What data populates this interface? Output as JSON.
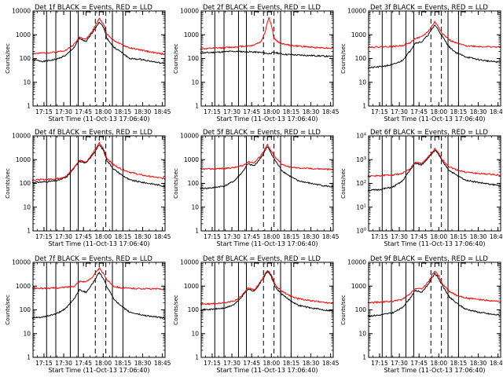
{
  "chart_data": [
    {
      "type": "line",
      "title": "Det 1f BLACK = Events, RED = LLD",
      "xlabel": "Start Time (11-Oct-13 17:06:40)",
      "ylabel": "Counts/sec",
      "yscale": "log",
      "ylim": [
        1,
        10000
      ],
      "x_ticks": [
        "17:15",
        "17:30",
        "17:45",
        "18:00",
        "18:15",
        "18:30",
        "18:45"
      ],
      "y_ticks": [
        "1",
        "10",
        "100",
        "1000",
        "10000"
      ],
      "series": [
        {
          "name": "Events",
          "color": "#000000",
          "x": [
            "17:06",
            "17:15",
            "17:25",
            "17:32",
            "17:38",
            "17:42",
            "17:47",
            "17:52",
            "17:57",
            "18:00",
            "18:03",
            "18:08",
            "18:13",
            "18:20",
            "18:30",
            "18:40",
            "18:47"
          ],
          "values": [
            90,
            75,
            95,
            140,
            300,
            700,
            500,
            1300,
            3500,
            2200,
            700,
            300,
            200,
            100,
            90,
            70,
            60
          ]
        },
        {
          "name": "LLD",
          "color": "#ff0000",
          "x": [
            "17:06",
            "17:15",
            "17:25",
            "17:32",
            "17:38",
            "17:42",
            "17:47",
            "17:52",
            "17:57",
            "18:00",
            "18:03",
            "18:08",
            "18:13",
            "18:20",
            "18:30",
            "18:40",
            "18:47"
          ],
          "values": [
            160,
            170,
            190,
            230,
            400,
            800,
            650,
            1500,
            4800,
            3000,
            1000,
            600,
            400,
            280,
            220,
            170,
            150
          ]
        }
      ]
    },
    {
      "type": "line",
      "title": "Det 2f BLACK = Events, RED = LLD",
      "xlabel": "Start Time (11-Oct-13 17:06:40)",
      "ylabel": "Counts/sec",
      "yscale": "log",
      "ylim": [
        1,
        10000
      ],
      "x_ticks": [
        "17:15",
        "17:30",
        "17:45",
        "18:00",
        "18:15",
        "18:30",
        "18:45"
      ],
      "y_ticks": [
        "1",
        "10",
        "100",
        "1000",
        "10000"
      ],
      "series": [
        {
          "name": "Events",
          "color": "#000000",
          "x": [
            "17:06",
            "17:15",
            "17:30",
            "17:45",
            "17:52",
            "17:55",
            "17:58",
            "18:02",
            "18:10",
            "18:20",
            "18:35",
            "18:47"
          ],
          "values": [
            170,
            180,
            200,
            190,
            180,
            170,
            160,
            180,
            150,
            140,
            130,
            120
          ]
        },
        {
          "name": "LLD",
          "color": "#ff0000",
          "x": [
            "17:06",
            "17:15",
            "17:30",
            "17:45",
            "17:52",
            "17:55",
            "17:58",
            "18:00",
            "18:02",
            "18:06",
            "18:15",
            "18:30",
            "18:47"
          ],
          "values": [
            250,
            270,
            300,
            350,
            500,
            1200,
            5500,
            2500,
            700,
            450,
            350,
            300,
            270
          ]
        }
      ]
    },
    {
      "type": "line",
      "title": "Det 3f BLACK = Events, RED = LLD",
      "xlabel": "Start Time (11-Oct-13 17:06:40)",
      "ylabel": "Counts/sec",
      "yscale": "log",
      "ylim": [
        1,
        10000
      ],
      "x_ticks": [
        "17:15",
        "17:30",
        "17:45",
        "18:00",
        "18:15",
        "18:30",
        "18:45"
      ],
      "y_ticks": [
        "1",
        "10",
        "100",
        "1000",
        "10000"
      ],
      "series": [
        {
          "name": "Events",
          "color": "#000000",
          "x": [
            "17:06",
            "17:15",
            "17:25",
            "17:32",
            "17:38",
            "17:42",
            "17:47",
            "17:52",
            "17:57",
            "18:00",
            "18:03",
            "18:08",
            "18:13",
            "18:20",
            "18:30",
            "18:40",
            "18:47"
          ],
          "values": [
            40,
            45,
            55,
            80,
            200,
            450,
            500,
            1000,
            2600,
            1500,
            800,
            300,
            180,
            120,
            90,
            75,
            70
          ]
        },
        {
          "name": "LLD",
          "color": "#ff0000",
          "x": [
            "17:06",
            "17:15",
            "17:25",
            "17:32",
            "17:38",
            "17:42",
            "17:47",
            "17:52",
            "17:57",
            "18:00",
            "18:03",
            "18:08",
            "18:13",
            "18:20",
            "18:30",
            "18:40",
            "18:47"
          ],
          "values": [
            300,
            310,
            320,
            350,
            450,
            700,
            800,
            1400,
            3500,
            2000,
            1100,
            600,
            450,
            350,
            320,
            310,
            300
          ]
        }
      ]
    },
    {
      "type": "line",
      "title": "Det 4f BLACK = Events, RED = LLD",
      "xlabel": "Start Time (11-Oct-13 17:06:40)",
      "ylabel": "Counts/sec",
      "yscale": "log",
      "ylim": [
        1,
        10000
      ],
      "x_ticks": [
        "17:15",
        "17:30",
        "17:45",
        "18:00",
        "18:15",
        "18:30",
        "18:45"
      ],
      "y_ticks": [
        "1",
        "10",
        "100",
        "1000",
        "10000"
      ],
      "series": [
        {
          "name": "Events",
          "color": "#000000",
          "x": [
            "17:06",
            "17:15",
            "17:25",
            "17:32",
            "17:38",
            "17:42",
            "17:47",
            "17:52",
            "17:57",
            "18:00",
            "18:03",
            "18:08",
            "18:13",
            "18:20",
            "18:30",
            "18:40",
            "18:47"
          ],
          "values": [
            110,
            115,
            130,
            180,
            450,
            900,
            700,
            1600,
            4200,
            2600,
            900,
            400,
            250,
            140,
            110,
            90,
            75
          ]
        },
        {
          "name": "LLD",
          "color": "#ff0000",
          "x": [
            "17:06",
            "17:15",
            "17:25",
            "17:32",
            "17:38",
            "17:42",
            "17:47",
            "17:52",
            "17:57",
            "18:00",
            "18:03",
            "18:08",
            "18:13",
            "18:20",
            "18:30",
            "18:40",
            "18:47"
          ],
          "values": [
            140,
            145,
            160,
            200,
            480,
            950,
            800,
            1800,
            5000,
            3000,
            1100,
            600,
            420,
            300,
            220,
            180,
            160
          ]
        }
      ]
    },
    {
      "type": "line",
      "title": "Det 5f BLACK = Events, RED = LLD",
      "xlabel": "Start Time (11-Oct-13 17:06:40)",
      "ylabel": "Counts/sec",
      "yscale": "log",
      "ylim": [
        1,
        10000
      ],
      "x_ticks": [
        "17:15",
        "17:30",
        "17:45",
        "18:00",
        "18:15",
        "18:30",
        "18:45"
      ],
      "y_ticks": [
        "1",
        "10",
        "100",
        "1000",
        "10000"
      ],
      "series": [
        {
          "name": "Events",
          "color": "#000000",
          "x": [
            "17:06",
            "17:15",
            "17:25",
            "17:32",
            "17:38",
            "17:42",
            "17:47",
            "17:52",
            "17:57",
            "18:00",
            "18:03",
            "18:08",
            "18:13",
            "18:20",
            "18:30",
            "18:40",
            "18:47"
          ],
          "values": [
            60,
            65,
            80,
            130,
            300,
            650,
            550,
            1200,
            3500,
            1800,
            900,
            350,
            220,
            130,
            100,
            80,
            70
          ]
        },
        {
          "name": "LLD",
          "color": "#ff0000",
          "x": [
            "17:06",
            "17:15",
            "17:25",
            "17:32",
            "17:38",
            "17:42",
            "17:47",
            "17:52",
            "17:57",
            "18:00",
            "18:03",
            "18:08",
            "18:13",
            "18:20",
            "18:30",
            "18:40",
            "18:47"
          ],
          "values": [
            400,
            410,
            430,
            470,
            550,
            800,
            750,
            1500,
            4200,
            2200,
            1200,
            650,
            500,
            450,
            420,
            400,
            380
          ]
        }
      ]
    },
    {
      "type": "line",
      "title": "Det 6f BLACK = Events, RED = LLD",
      "xlabel": "Start Time (11-Oct-13 17:06:40)",
      "ylabel": "Counts/sec",
      "yscale": "log",
      "ylim": [
        1,
        10000
      ],
      "x_ticks": [
        "17:15",
        "17:30",
        "17:45",
        "18:00",
        "18:15",
        "18:30",
        "18:45"
      ],
      "y_ticks": [
        "10^0",
        "10^1",
        "10^2",
        "10^3",
        "10^4"
      ],
      "series": [
        {
          "name": "Events",
          "color": "#000000",
          "x": [
            "17:06",
            "17:15",
            "17:25",
            "17:32",
            "17:38",
            "17:42",
            "17:47",
            "17:52",
            "17:57",
            "18:00",
            "18:03",
            "18:08",
            "18:13",
            "18:20",
            "18:30",
            "18:40",
            "18:47"
          ],
          "values": [
            50,
            55,
            70,
            120,
            350,
            700,
            600,
            1200,
            2500,
            1600,
            800,
            350,
            230,
            140,
            110,
            90,
            80
          ]
        },
        {
          "name": "LLD",
          "color": "#ff0000",
          "x": [
            "17:06",
            "17:15",
            "17:25",
            "17:32",
            "17:38",
            "17:42",
            "17:47",
            "17:52",
            "17:57",
            "18:00",
            "18:03",
            "18:08",
            "18:13",
            "18:20",
            "18:30",
            "18:40",
            "18:47"
          ],
          "values": [
            200,
            210,
            230,
            260,
            400,
            750,
            700,
            1300,
            2800,
            1800,
            950,
            500,
            380,
            300,
            260,
            240,
            220
          ]
        }
      ]
    },
    {
      "type": "line",
      "title": "Det 7f BLACK = Events, RED = LLD",
      "xlabel": "Start Time (11-Oct-13 17:06:40)",
      "ylabel": "Counts/sec",
      "yscale": "log",
      "ylim": [
        1,
        10000
      ],
      "x_ticks": [
        "17:15",
        "17:30",
        "17:45",
        "18:00",
        "18:15",
        "18:30",
        "18:45"
      ],
      "y_ticks": [
        "1",
        "10",
        "100",
        "1000",
        "10000"
      ],
      "series": [
        {
          "name": "Events",
          "color": "#000000",
          "x": [
            "17:06",
            "17:15",
            "17:25",
            "17:32",
            "17:38",
            "17:42",
            "17:47",
            "17:52",
            "17:57",
            "18:00",
            "18:03",
            "18:08",
            "18:13",
            "18:20",
            "18:30",
            "18:40",
            "18:47"
          ],
          "values": [
            45,
            50,
            70,
            120,
            300,
            700,
            550,
            1300,
            3800,
            2100,
            900,
            300,
            150,
            80,
            60,
            50,
            45
          ]
        },
        {
          "name": "LLD",
          "color": "#ff0000",
          "x": [
            "17:06",
            "17:15",
            "17:25",
            "17:32",
            "17:38",
            "17:42",
            "17:47",
            "17:52",
            "17:57",
            "18:00",
            "18:03",
            "18:08",
            "18:13",
            "18:20",
            "18:30",
            "18:40",
            "18:47"
          ],
          "values": [
            800,
            810,
            830,
            900,
            1000,
            1600,
            1500,
            2500,
            5500,
            3500,
            1800,
            1000,
            850,
            800,
            780,
            760,
            750
          ]
        }
      ]
    },
    {
      "type": "line",
      "title": "Det 8f BLACK = Events, RED = LLD",
      "xlabel": "Start Time (11-Oct-13 17:06:40)",
      "ylabel": "Counts/sec",
      "yscale": "log",
      "ylim": [
        1,
        10000
      ],
      "x_ticks": [
        "17:15",
        "17:30",
        "17:45",
        "18:00",
        "18:15",
        "18:30",
        "18:45"
      ],
      "y_ticks": [
        "1",
        "10",
        "100",
        "1000",
        "10000"
      ],
      "series": [
        {
          "name": "Events",
          "color": "#000000",
          "x": [
            "17:06",
            "17:15",
            "17:25",
            "17:32",
            "17:38",
            "17:42",
            "17:47",
            "17:52",
            "17:57",
            "18:00",
            "18:03",
            "18:08",
            "18:13",
            "18:20",
            "18:30",
            "18:40",
            "18:47"
          ],
          "values": [
            100,
            105,
            120,
            170,
            380,
            750,
            600,
            1500,
            4200,
            2500,
            900,
            450,
            280,
            160,
            120,
            100,
            90
          ]
        },
        {
          "name": "LLD",
          "color": "#ff0000",
          "x": [
            "17:06",
            "17:15",
            "17:25",
            "17:32",
            "17:38",
            "17:42",
            "17:47",
            "17:52",
            "17:57",
            "18:00",
            "18:03",
            "18:08",
            "18:13",
            "18:20",
            "18:30",
            "18:40",
            "18:47"
          ],
          "values": [
            170,
            180,
            200,
            240,
            420,
            800,
            700,
            1600,
            4800,
            2800,
            1100,
            600,
            420,
            300,
            240,
            210,
            190
          ]
        }
      ]
    },
    {
      "type": "line",
      "title": "Det 9f BLACK = Events, RED = LLD",
      "xlabel": "Start Time (11-Oct-13 17:06:40)",
      "ylabel": "Counts/sec",
      "yscale": "log",
      "ylim": [
        1,
        10000
      ],
      "x_ticks": [
        "17:15",
        "17:30",
        "17:45",
        "18:00",
        "18:15",
        "18:30",
        "18:45"
      ],
      "y_ticks": [
        "1",
        "10",
        "100",
        "1000",
        "10000"
      ],
      "series": [
        {
          "name": "Events",
          "color": "#000000",
          "x": [
            "17:06",
            "17:15",
            "17:25",
            "17:32",
            "17:38",
            "17:42",
            "17:47",
            "17:52",
            "17:57",
            "18:00",
            "18:03",
            "18:08",
            "18:13",
            "18:20",
            "18:30",
            "18:40",
            "18:47"
          ],
          "values": [
            55,
            60,
            75,
            120,
            300,
            650,
            550,
            1200,
            3500,
            2000,
            1000,
            350,
            200,
            110,
            80,
            65,
            60
          ]
        },
        {
          "name": "LLD",
          "color": "#ff0000",
          "x": [
            "17:06",
            "17:15",
            "17:25",
            "17:32",
            "17:38",
            "17:42",
            "17:47",
            "17:52",
            "17:57",
            "18:00",
            "18:03",
            "18:08",
            "18:13",
            "18:20",
            "18:30",
            "18:40",
            "18:47"
          ],
          "values": [
            200,
            210,
            230,
            270,
            450,
            800,
            750,
            1500,
            4500,
            2600,
            1200,
            600,
            420,
            320,
            270,
            240,
            220
          ]
        }
      ]
    }
  ]
}
